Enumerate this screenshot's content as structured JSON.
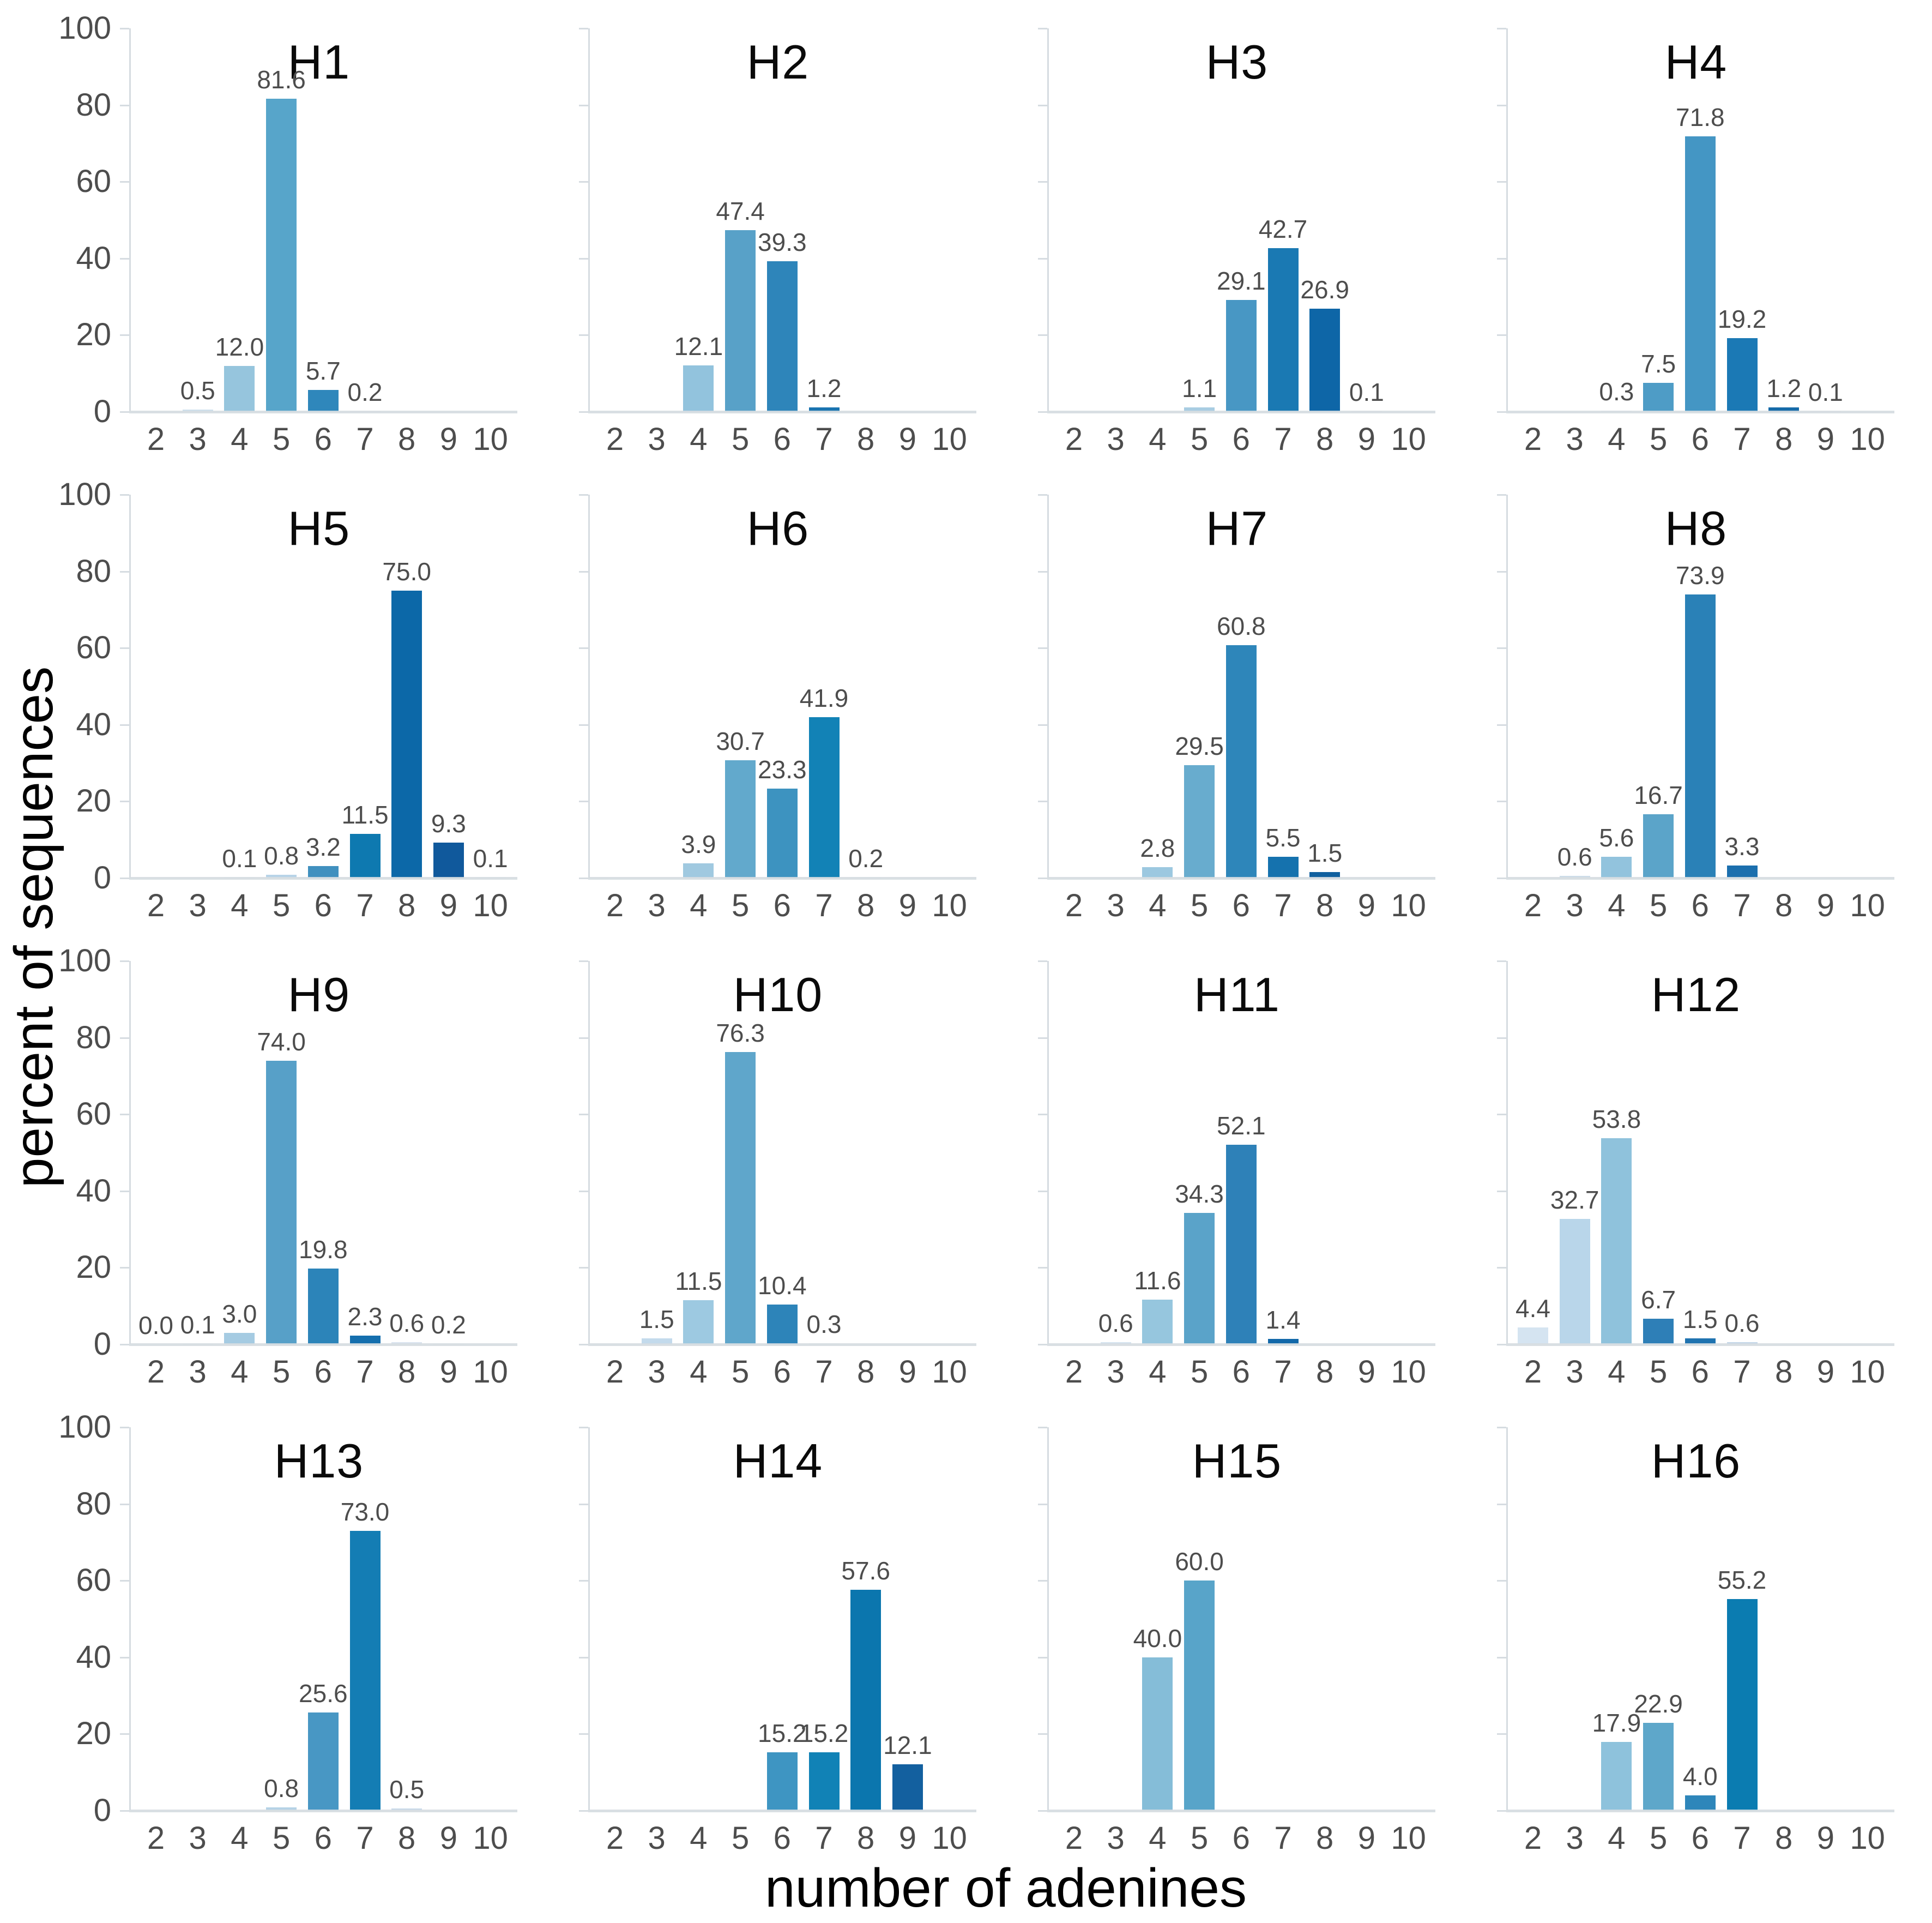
{
  "figure": {
    "xlabel": "number of adenines",
    "ylabel": "percent of sequences"
  },
  "axes": {
    "x_ticks": [
      2,
      3,
      4,
      5,
      6,
      7,
      8,
      9,
      10
    ],
    "y_ticks": [
      0,
      20,
      40,
      60,
      80,
      100
    ],
    "ylim": [
      0,
      100
    ],
    "y_tick_labels_on_first_column_only": true
  },
  "style_colors": {
    "axis_line": "#d6dce1",
    "tick_label": "#4d4d4d",
    "value_label": "#4d4d4d",
    "title": "#0a0a0a"
  },
  "chart_data": [
    {
      "type": "bar",
      "title": "H1",
      "xlabel": "",
      "ylabel": "",
      "ylim": [
        0,
        100
      ],
      "grid": false,
      "bars": [
        {
          "x": 3,
          "v": 0.5,
          "label": "0.5",
          "c": "#cddfec"
        },
        {
          "x": 4,
          "v": 12.0,
          "label": "12.0",
          "c": "#96c5dd"
        },
        {
          "x": 5,
          "v": 81.6,
          "label": "81.6",
          "c": "#57a5ca"
        },
        {
          "x": 6,
          "v": 5.7,
          "label": "5.7",
          "c": "#2f87bb"
        },
        {
          "x": 7,
          "v": 0.2,
          "label": "0.2",
          "c": "#d5e2ee"
        }
      ]
    },
    {
      "type": "bar",
      "title": "H2",
      "xlabel": "",
      "ylabel": "",
      "ylim": [
        0,
        100
      ],
      "grid": false,
      "bars": [
        {
          "x": 4,
          "v": 12.1,
          "label": "12.1",
          "c": "#92c3dd"
        },
        {
          "x": 5,
          "v": 47.4,
          "label": "47.4",
          "c": "#58a1c8"
        },
        {
          "x": 6,
          "v": 39.3,
          "label": "39.3",
          "c": "#2e85ba"
        },
        {
          "x": 7,
          "v": 1.2,
          "label": "1.2",
          "c": "#1a74b0"
        }
      ]
    },
    {
      "type": "bar",
      "title": "H3",
      "xlabel": "",
      "ylabel": "",
      "ylim": [
        0,
        100
      ],
      "grid": false,
      "bars": [
        {
          "x": 5,
          "v": 1.1,
          "label": "1.1",
          "c": "#a9cde2"
        },
        {
          "x": 6,
          "v": 29.1,
          "label": "29.1",
          "c": "#4897c4"
        },
        {
          "x": 7,
          "v": 42.7,
          "label": "42.7",
          "c": "#1a79b3"
        },
        {
          "x": 8,
          "v": 26.9,
          "label": "26.9",
          "c": "#0e66a7"
        },
        {
          "x": 9,
          "v": 0.1,
          "label": "0.1",
          "c": "#d5e2ee"
        }
      ]
    },
    {
      "type": "bar",
      "title": "H4",
      "xlabel": "",
      "ylabel": "",
      "ylim": [
        0,
        100
      ],
      "grid": false,
      "bars": [
        {
          "x": 4,
          "v": 0.3,
          "label": "0.3",
          "c": "#d0e0ee"
        },
        {
          "x": 5,
          "v": 7.5,
          "label": "7.5",
          "c": "#4e9cc6"
        },
        {
          "x": 6,
          "v": 71.8,
          "label": "71.8",
          "c": "#4496c4"
        },
        {
          "x": 7,
          "v": 19.2,
          "label": "19.2",
          "c": "#1b79b5"
        },
        {
          "x": 8,
          "v": 1.2,
          "label": "1.2",
          "c": "#166ba9"
        },
        {
          "x": 9,
          "v": 0.1,
          "label": "0.1",
          "c": "#d5e2ee"
        }
      ]
    },
    {
      "type": "bar",
      "title": "H5",
      "xlabel": "",
      "ylabel": "",
      "ylim": [
        0,
        100
      ],
      "grid": false,
      "bars": [
        {
          "x": 4,
          "v": 0.1,
          "label": "0.1",
          "c": "#d5e3f0"
        },
        {
          "x": 5,
          "v": 0.8,
          "label": "0.8",
          "c": "#b7d3e8"
        },
        {
          "x": 6,
          "v": 3.2,
          "label": "3.2",
          "c": "#4090bf"
        },
        {
          "x": 7,
          "v": 11.5,
          "label": "11.5",
          "c": "#0e79b0"
        },
        {
          "x": 8,
          "v": 75.0,
          "label": "75.0",
          "c": "#0c68a8"
        },
        {
          "x": 9,
          "v": 9.3,
          "label": "9.3",
          "c": "#10599c"
        },
        {
          "x": 10,
          "v": 0.1,
          "label": "0.1",
          "c": "#d5e2ee"
        }
      ]
    },
    {
      "type": "bar",
      "title": "H6",
      "xlabel": "",
      "ylabel": "",
      "ylim": [
        0,
        100
      ],
      "grid": false,
      "bars": [
        {
          "x": 4,
          "v": 3.9,
          "label": "3.9",
          "c": "#a0c9e0"
        },
        {
          "x": 5,
          "v": 30.7,
          "label": "30.7",
          "c": "#62a9cc"
        },
        {
          "x": 6,
          "v": 23.3,
          "label": "23.3",
          "c": "#3d93c0"
        },
        {
          "x": 7,
          "v": 41.9,
          "label": "41.9",
          "c": "#1282b6"
        },
        {
          "x": 8,
          "v": 0.2,
          "label": "0.2",
          "c": "#d5e2ee"
        }
      ]
    },
    {
      "type": "bar",
      "title": "H7",
      "xlabel": "",
      "ylabel": "",
      "ylim": [
        0,
        100
      ],
      "grid": false,
      "bars": [
        {
          "x": 4,
          "v": 2.8,
          "label": "2.8",
          "c": "#9cc8e0"
        },
        {
          "x": 5,
          "v": 29.5,
          "label": "29.5",
          "c": "#68acce"
        },
        {
          "x": 6,
          "v": 60.8,
          "label": "60.8",
          "c": "#2e86ba"
        },
        {
          "x": 7,
          "v": 5.5,
          "label": "5.5",
          "c": "#1572ae"
        },
        {
          "x": 8,
          "v": 1.5,
          "label": "1.5",
          "c": "#10609f"
        }
      ]
    },
    {
      "type": "bar",
      "title": "H8",
      "xlabel": "",
      "ylabel": "",
      "ylim": [
        0,
        100
      ],
      "grid": false,
      "bars": [
        {
          "x": 3,
          "v": 0.6,
          "label": "0.6",
          "c": "#ccdce9"
        },
        {
          "x": 4,
          "v": 5.6,
          "label": "5.6",
          "c": "#92c3dd"
        },
        {
          "x": 5,
          "v": 16.7,
          "label": "16.7",
          "c": "#5ba4c9"
        },
        {
          "x": 6,
          "v": 73.9,
          "label": "73.9",
          "c": "#2a81b7"
        },
        {
          "x": 7,
          "v": 3.3,
          "label": "3.3",
          "c": "#1b6fae"
        }
      ]
    },
    {
      "type": "bar",
      "title": "H9",
      "xlabel": "",
      "ylabel": "",
      "ylim": [
        0,
        100
      ],
      "grid": false,
      "bars": [
        {
          "x": 2,
          "v": 0.0,
          "label": "0.0",
          "c": "#e8eef5"
        },
        {
          "x": 3,
          "v": 0.1,
          "label": "0.1",
          "c": "#d8e4f0"
        },
        {
          "x": 4,
          "v": 3.0,
          "label": "3.0",
          "c": "#a5cbe2"
        },
        {
          "x": 5,
          "v": 74.0,
          "label": "74.0",
          "c": "#57a0c8"
        },
        {
          "x": 6,
          "v": 19.8,
          "label": "19.8",
          "c": "#2c84b9"
        },
        {
          "x": 7,
          "v": 2.3,
          "label": "2.3",
          "c": "#156fae"
        },
        {
          "x": 8,
          "v": 0.6,
          "label": "0.6",
          "c": "#d9e3ef"
        },
        {
          "x": 9,
          "v": 0.2,
          "label": "0.2",
          "c": "#e2eaf3"
        }
      ]
    },
    {
      "type": "bar",
      "title": "H10",
      "xlabel": "",
      "ylabel": "",
      "ylim": [
        0,
        100
      ],
      "grid": false,
      "bars": [
        {
          "x": 3,
          "v": 1.5,
          "label": "1.5",
          "c": "#c3daec"
        },
        {
          "x": 4,
          "v": 11.5,
          "label": "11.5",
          "c": "#9dc9e1"
        },
        {
          "x": 5,
          "v": 76.3,
          "label": "76.3",
          "c": "#5fa6cb"
        },
        {
          "x": 6,
          "v": 10.4,
          "label": "10.4",
          "c": "#2d84b9"
        },
        {
          "x": 7,
          "v": 0.3,
          "label": "0.3",
          "c": "#dbe6f1"
        }
      ]
    },
    {
      "type": "bar",
      "title": "H11",
      "xlabel": "",
      "ylabel": "",
      "ylim": [
        0,
        100
      ],
      "grid": false,
      "bars": [
        {
          "x": 3,
          "v": 0.6,
          "label": "0.6",
          "c": "#d4e2ef"
        },
        {
          "x": 4,
          "v": 11.6,
          "label": "11.6",
          "c": "#96c6de"
        },
        {
          "x": 5,
          "v": 34.3,
          "label": "34.3",
          "c": "#5aa3c9"
        },
        {
          "x": 6,
          "v": 52.1,
          "label": "52.1",
          "c": "#2e81b8"
        },
        {
          "x": 7,
          "v": 1.4,
          "label": "1.4",
          "c": "#1268a9"
        }
      ]
    },
    {
      "type": "bar",
      "title": "H12",
      "xlabel": "",
      "ylabel": "",
      "ylim": [
        0,
        100
      ],
      "grid": false,
      "bars": [
        {
          "x": 2,
          "v": 4.4,
          "label": "4.4",
          "c": "#d5e4f1"
        },
        {
          "x": 3,
          "v": 32.7,
          "label": "32.7",
          "c": "#b9d6ea"
        },
        {
          "x": 4,
          "v": 53.8,
          "label": "53.8",
          "c": "#8fc2dc"
        },
        {
          "x": 5,
          "v": 6.7,
          "label": "6.7",
          "c": "#2e7fb7"
        },
        {
          "x": 6,
          "v": 1.5,
          "label": "1.5",
          "c": "#1f73b0"
        },
        {
          "x": 7,
          "v": 0.6,
          "label": "0.6",
          "c": "#c3d6e8"
        }
      ]
    },
    {
      "type": "bar",
      "title": "H13",
      "xlabel": "",
      "ylabel": "",
      "ylim": [
        0,
        100
      ],
      "grid": false,
      "bars": [
        {
          "x": 5,
          "v": 0.8,
          "label": "0.8",
          "c": "#b5d2e6"
        },
        {
          "x": 6,
          "v": 25.6,
          "label": "25.6",
          "c": "#4897c4"
        },
        {
          "x": 7,
          "v": 73.0,
          "label": "73.0",
          "c": "#147db4"
        },
        {
          "x": 8,
          "v": 0.5,
          "label": "0.5",
          "c": "#c7d9e9"
        }
      ]
    },
    {
      "type": "bar",
      "title": "H14",
      "xlabel": "",
      "ylabel": "",
      "ylim": [
        0,
        100
      ],
      "grid": false,
      "bars": [
        {
          "x": 6,
          "v": 15.2,
          "label": "15.2",
          "c": "#3e95c2"
        },
        {
          "x": 7,
          "v": 15.2,
          "label": "15.2",
          "c": "#1182b6"
        },
        {
          "x": 8,
          "v": 57.6,
          "label": "57.6",
          "c": "#0b76ae"
        },
        {
          "x": 9,
          "v": 12.1,
          "label": "12.1",
          "c": "#13609f"
        }
      ]
    },
    {
      "type": "bar",
      "title": "H15",
      "xlabel": "",
      "ylabel": "",
      "ylim": [
        0,
        100
      ],
      "grid": false,
      "bars": [
        {
          "x": 4,
          "v": 40.0,
          "label": "40.0",
          "c": "#85bdd8"
        },
        {
          "x": 5,
          "v": 60.0,
          "label": "60.0",
          "c": "#58a4c9"
        }
      ]
    },
    {
      "type": "bar",
      "title": "H16",
      "xlabel": "",
      "ylabel": "",
      "ylim": [
        0,
        100
      ],
      "grid": false,
      "bars": [
        {
          "x": 4,
          "v": 17.9,
          "label": "17.9",
          "c": "#8ec2dc"
        },
        {
          "x": 5,
          "v": 22.9,
          "label": "22.9",
          "c": "#5ea7ca"
        },
        {
          "x": 6,
          "v": 4.0,
          "label": "4.0",
          "c": "#2e86ba"
        },
        {
          "x": 7,
          "v": 55.2,
          "label": "55.2",
          "c": "#0b7cb1"
        }
      ]
    }
  ]
}
